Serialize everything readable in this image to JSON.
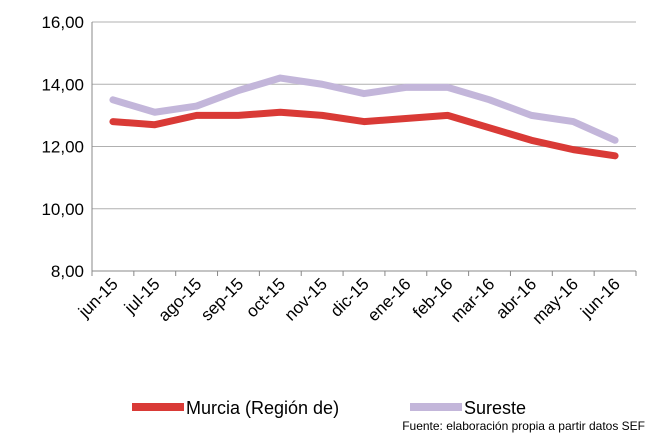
{
  "chart_data": {
    "type": "line",
    "categories": [
      "jun-15",
      "jul-15",
      "ago-15",
      "sep-15",
      "oct-15",
      "nov-15",
      "dic-15",
      "ene-16",
      "feb-16",
      "mar-16",
      "abr-16",
      "may-16",
      "jun-16"
    ],
    "series": [
      {
        "name": "Murcia (Región de)",
        "color": "#d93a36",
        "values": [
          12.8,
          12.7,
          13.0,
          13.0,
          13.1,
          13.0,
          12.8,
          12.9,
          13.0,
          12.6,
          12.2,
          11.9,
          11.7
        ]
      },
      {
        "name": "Sureste",
        "color": "#c3b6da",
        "values": [
          13.5,
          13.1,
          13.3,
          13.8,
          14.2,
          14.0,
          13.7,
          13.9,
          13.9,
          13.5,
          13.0,
          12.8,
          12.2
        ]
      }
    ],
    "ylim": [
      8,
      16
    ],
    "yticks": [
      {
        "value": 8,
        "label": "8,00"
      },
      {
        "value": 10,
        "label": "10,00"
      },
      {
        "value": 12,
        "label": "12,00"
      },
      {
        "value": 14,
        "label": "14,00"
      },
      {
        "value": 16,
        "label": "16,00"
      }
    ],
    "grid": true,
    "legend": "bottom",
    "note": "Fuente: elaboración propia a partir datos SEF"
  }
}
